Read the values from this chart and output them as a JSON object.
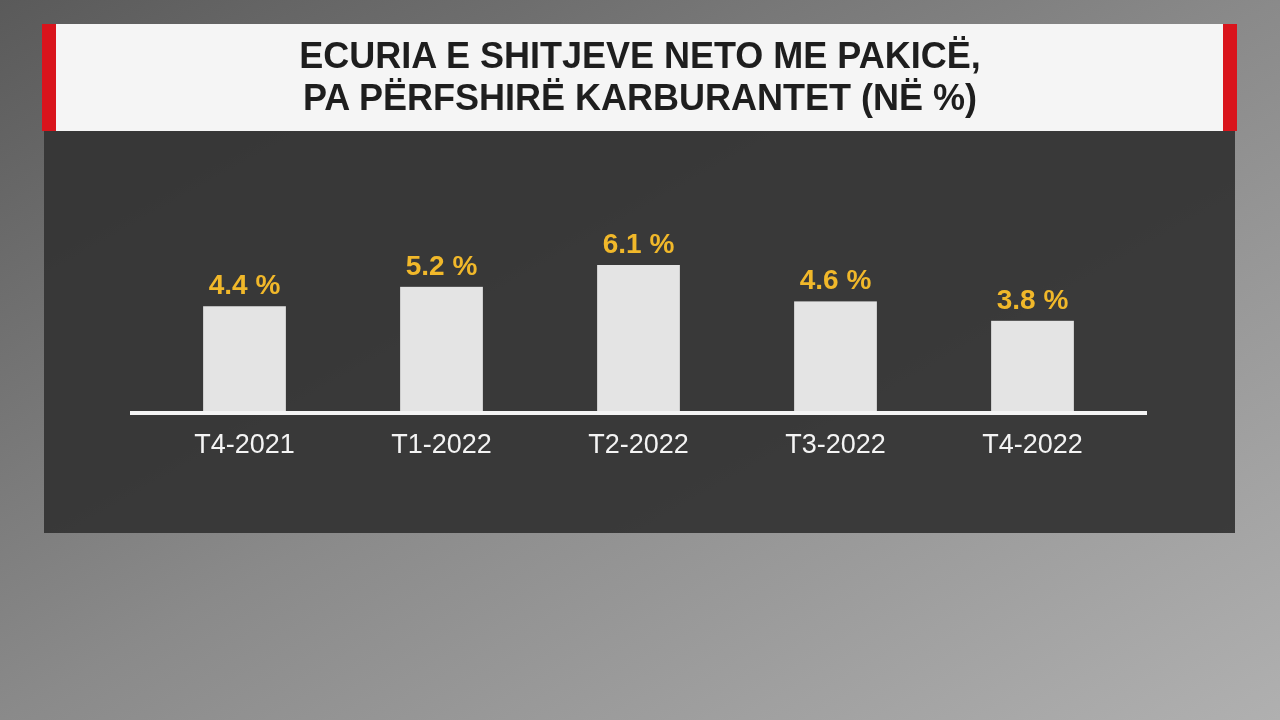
{
  "chart_data": {
    "type": "bar",
    "title": "ECURIA E SHITJEVE NETO ME PAKICË,\nPA PËRFSHIRË KARBURANTET (NË %)",
    "categories": [
      "T4-2021",
      "T1-2022",
      "T2-2022",
      "T3-2022",
      "T4-2022"
    ],
    "values": [
      4.4,
      5.2,
      6.1,
      4.6,
      3.8
    ],
    "value_labels": [
      "4.4 %",
      "5.2 %",
      "6.1 %",
      "4.6 %",
      "3.8 %"
    ],
    "color": "#e4e4e4"
  }
}
